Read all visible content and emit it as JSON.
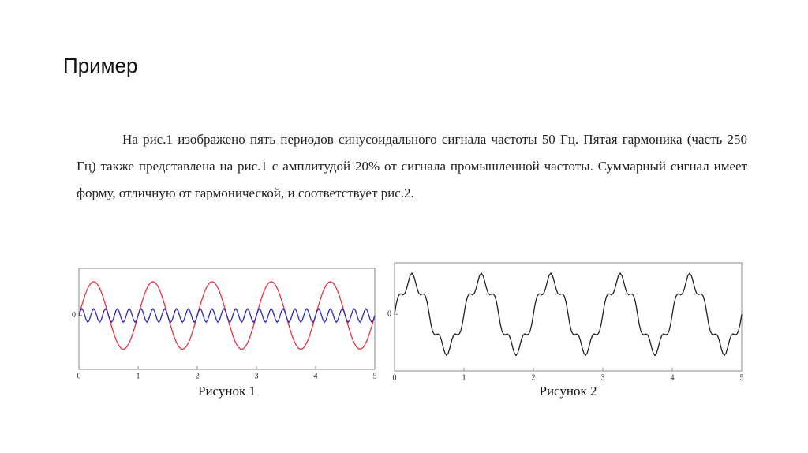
{
  "title": "Пример",
  "paragraph": "На рис.1 изображено пять периодов синусоидального сигнала частоты 50 Гц. Пятая гармоника  (часть 250 Гц) также представлена на рис.1 с амплитудой 20% от сигнала промышленной частоты. Суммарный сигнал имеет форму, отличную от гармонической, и соответствует рис.2.",
  "chart_data": [
    {
      "type": "line",
      "caption": "Рисунок 1",
      "xlim": [
        0,
        5
      ],
      "xticks": [
        0,
        1,
        2,
        3,
        4,
        5
      ],
      "ylim": [
        -1.6,
        1.4
      ],
      "yticks": [
        0
      ],
      "x": [
        0,
        0.025,
        0.05,
        0.075,
        0.1,
        0.125,
        0.15,
        0.175,
        0.2,
        0.225,
        0.25,
        0.275,
        0.3,
        0.325,
        0.35,
        0.375,
        0.4,
        0.425,
        0.45,
        0.475,
        0.5,
        0.525,
        0.55,
        0.575,
        0.6,
        0.625,
        0.65,
        0.675,
        0.7,
        0.725,
        0.75,
        0.775,
        0.8,
        0.825,
        0.85,
        0.875,
        0.9,
        0.925,
        0.95,
        0.975,
        1,
        1.025,
        1.05,
        1.075,
        1.1,
        1.125,
        1.15,
        1.175,
        1.2,
        1.225,
        1.25,
        1.275,
        1.3,
        1.325,
        1.35,
        1.375,
        1.4,
        1.425,
        1.45,
        1.475,
        1.5,
        1.525,
        1.55,
        1.575,
        1.6,
        1.625,
        1.65,
        1.675,
        1.7,
        1.725,
        1.75,
        1.775,
        1.8,
        1.825,
        1.85,
        1.875,
        1.9,
        1.925,
        1.95,
        1.975,
        2,
        2.025,
        2.05,
        2.075,
        2.1,
        2.125,
        2.15,
        2.175,
        2.2,
        2.225,
        2.25,
        2.275,
        2.3,
        2.325,
        2.35,
        2.375,
        2.4,
        2.425,
        2.45,
        2.475,
        2.5,
        2.525,
        2.55,
        2.575,
        2.6,
        2.625,
        2.65,
        2.675,
        2.7,
        2.725,
        2.75,
        2.775,
        2.8,
        2.825,
        2.85,
        2.875,
        2.9,
        2.925,
        2.95,
        2.975,
        3,
        3.025,
        3.05,
        3.075,
        3.1,
        3.125,
        3.15,
        3.175,
        3.2,
        3.225,
        3.25,
        3.275,
        3.3,
        3.325,
        3.35,
        3.375,
        3.4,
        3.425,
        3.45,
        3.475,
        3.5,
        3.525,
        3.55,
        3.575,
        3.6,
        3.625,
        3.65,
        3.675,
        3.7,
        3.725,
        3.75,
        3.775,
        3.8,
        3.825,
        3.85,
        3.875,
        3.9,
        3.925,
        3.95,
        3.975,
        4,
        4.025,
        4.05,
        4.075,
        4.1,
        4.125,
        4.15,
        4.175,
        4.2,
        4.225,
        4.25,
        4.275,
        4.3,
        4.325,
        4.35,
        4.375,
        4.4,
        4.425,
        4.45,
        4.475,
        4.5,
        4.525,
        4.55,
        4.575,
        4.6,
        4.625,
        4.65,
        4.675,
        4.7,
        4.725,
        4.75,
        4.775,
        4.8,
        4.825,
        4.85,
        4.875,
        4.9,
        4.925,
        4.95,
        4.975,
        5
      ],
      "series": [
        {
          "color": "#e8343c",
          "values": [
            0,
            0.16,
            0.31,
            0.45,
            0.59,
            0.71,
            0.81,
            0.89,
            0.95,
            0.99,
            1,
            0.99,
            0.95,
            0.89,
            0.81,
            0.71,
            0.59,
            0.45,
            0.31,
            0.16,
            0,
            -0.16,
            -0.31,
            -0.45,
            -0.59,
            -0.71,
            -0.81,
            -0.89,
            -0.95,
            -0.99,
            -1,
            -0.99,
            -0.95,
            -0.89,
            -0.81,
            -0.71,
            -0.59,
            -0.45,
            -0.31,
            -0.16,
            0,
            0.16,
            0.31,
            0.45,
            0.59,
            0.71,
            0.81,
            0.89,
            0.95,
            0.99,
            1,
            0.99,
            0.95,
            0.89,
            0.81,
            0.71,
            0.59,
            0.45,
            0.31,
            0.16,
            0,
            -0.16,
            -0.31,
            -0.45,
            -0.59,
            -0.71,
            -0.81,
            -0.89,
            -0.95,
            -0.99,
            -1,
            -0.99,
            -0.95,
            -0.89,
            -0.81,
            -0.71,
            -0.59,
            -0.45,
            -0.31,
            -0.16,
            0,
            0.16,
            0.31,
            0.45,
            0.59,
            0.71,
            0.81,
            0.89,
            0.95,
            0.99,
            1,
            0.99,
            0.95,
            0.89,
            0.81,
            0.71,
            0.59,
            0.45,
            0.31,
            0.16,
            0,
            -0.16,
            -0.31,
            -0.45,
            -0.59,
            -0.71,
            -0.81,
            -0.89,
            -0.95,
            -0.99,
            -1,
            -0.99,
            -0.95,
            -0.89,
            -0.81,
            -0.71,
            -0.59,
            -0.45,
            -0.31,
            -0.16,
            0,
            0.16,
            0.31,
            0.45,
            0.59,
            0.71,
            0.81,
            0.89,
            0.95,
            0.99,
            1,
            0.99,
            0.95,
            0.89,
            0.81,
            0.71,
            0.59,
            0.45,
            0.31,
            0.16,
            0,
            -0.16,
            -0.31,
            -0.45,
            -0.59,
            -0.71,
            -0.81,
            -0.89,
            -0.95,
            -0.99,
            -1,
            -0.99,
            -0.95,
            -0.89,
            -0.81,
            -0.71,
            -0.59,
            -0.45,
            -0.31,
            -0.16,
            0,
            0.16,
            0.31,
            0.45,
            0.59,
            0.71,
            0.81,
            0.89,
            0.95,
            0.99,
            1,
            0.99,
            0.95,
            0.89,
            0.81,
            0.71,
            0.59,
            0.45,
            0.31,
            0.16,
            0,
            -0.16,
            -0.31,
            -0.45,
            -0.59,
            -0.71,
            -0.81,
            -0.89,
            -0.95,
            -0.99,
            -1,
            -0.99,
            -0.95,
            -0.89,
            -0.81,
            -0.71,
            -0.59,
            -0.45,
            -0.31,
            -0.16,
            0
          ]
        },
        {
          "color": "#2b2bb8",
          "values": [
            0,
            0.14,
            0.2,
            0.14,
            0,
            -0.14,
            -0.2,
            -0.14,
            0,
            0.14,
            0.2,
            0.14,
            0,
            -0.14,
            -0.2,
            -0.14,
            0,
            0.14,
            0.2,
            0.14,
            0,
            -0.14,
            -0.2,
            -0.14,
            0,
            0.14,
            0.2,
            0.14,
            0,
            -0.14,
            -0.2,
            -0.14,
            0,
            0.14,
            0.2,
            0.14,
            0,
            -0.14,
            -0.2,
            -0.14,
            0,
            0.14,
            0.2,
            0.14,
            0,
            -0.14,
            -0.2,
            -0.14,
            0,
            0.14,
            0.2,
            0.14,
            0,
            -0.14,
            -0.2,
            -0.14,
            0,
            0.14,
            0.2,
            0.14,
            0,
            -0.14,
            -0.2,
            -0.14,
            0,
            0.14,
            0.2,
            0.14,
            0,
            -0.14,
            -0.2,
            -0.14,
            0,
            0.14,
            0.2,
            0.14,
            0,
            -0.14,
            -0.2,
            -0.14,
            0,
            0.14,
            0.2,
            0.14,
            0,
            -0.14,
            -0.2,
            -0.14,
            0,
            0.14,
            0.2,
            0.14,
            0,
            -0.14,
            -0.2,
            -0.14,
            0,
            0.14,
            0.2,
            0.14,
            0,
            -0.14,
            -0.2,
            -0.14,
            0,
            0.14,
            0.2,
            0.14,
            0,
            -0.14,
            -0.2,
            -0.14,
            0,
            0.14,
            0.2,
            0.14,
            0,
            -0.14,
            -0.2,
            -0.14,
            0,
            0.14,
            0.2,
            0.14,
            0,
            -0.14,
            -0.2,
            -0.14,
            0,
            0.14,
            0.2,
            0.14,
            0,
            -0.14,
            -0.2,
            -0.14,
            0,
            0.14,
            0.2,
            0.14,
            0,
            -0.14,
            -0.2,
            -0.14,
            0,
            0.14,
            0.2,
            0.14,
            0,
            -0.14,
            -0.2,
            -0.14,
            0,
            0.14,
            0.2,
            0.14,
            0,
            -0.14,
            -0.2,
            -0.14,
            0,
            0.14,
            0.2,
            0.14,
            0,
            -0.14,
            -0.2,
            -0.14,
            0,
            0.14,
            0.2,
            0.14,
            0,
            -0.14,
            -0.2,
            -0.14,
            0,
            0.14,
            0.2,
            0.14,
            0,
            -0.14,
            -0.2,
            -0.14,
            0,
            0.14,
            0.2,
            0.14,
            0,
            -0.14,
            -0.2,
            -0.14,
            0,
            0.14,
            0.2,
            0.14,
            0,
            -0.14,
            -0.2,
            -0.14,
            0
          ]
        }
      ]
    },
    {
      "type": "line",
      "caption": "Рисунок 2",
      "xlim": [
        0,
        5
      ],
      "xticks": [
        0,
        1,
        2,
        3,
        4,
        5
      ],
      "ylim": [
        -1.65,
        1.5
      ],
      "yticks": [
        0
      ],
      "x": [
        0,
        0.025,
        0.05,
        0.075,
        0.1,
        0.125,
        0.15,
        0.175,
        0.2,
        0.225,
        0.25,
        0.275,
        0.3,
        0.325,
        0.35,
        0.375,
        0.4,
        0.425,
        0.45,
        0.475,
        0.5,
        0.525,
        0.55,
        0.575,
        0.6,
        0.625,
        0.65,
        0.675,
        0.7,
        0.725,
        0.75,
        0.775,
        0.8,
        0.825,
        0.85,
        0.875,
        0.9,
        0.925,
        0.95,
        0.975,
        1,
        1.025,
        1.05,
        1.075,
        1.1,
        1.125,
        1.15,
        1.175,
        1.2,
        1.225,
        1.25,
        1.275,
        1.3,
        1.325,
        1.35,
        1.375,
        1.4,
        1.425,
        1.45,
        1.475,
        1.5,
        1.525,
        1.55,
        1.575,
        1.6,
        1.625,
        1.65,
        1.675,
        1.7,
        1.725,
        1.75,
        1.775,
        1.8,
        1.825,
        1.85,
        1.875,
        1.9,
        1.925,
        1.95,
        1.975,
        2,
        2.025,
        2.05,
        2.075,
        2.1,
        2.125,
        2.15,
        2.175,
        2.2,
        2.225,
        2.25,
        2.275,
        2.3,
        2.325,
        2.35,
        2.375,
        2.4,
        2.425,
        2.45,
        2.475,
        2.5,
        2.525,
        2.55,
        2.575,
        2.6,
        2.625,
        2.65,
        2.675,
        2.7,
        2.725,
        2.75,
        2.775,
        2.8,
        2.825,
        2.85,
        2.875,
        2.9,
        2.925,
        2.95,
        2.975,
        3,
        3.025,
        3.05,
        3.075,
        3.1,
        3.125,
        3.15,
        3.175,
        3.2,
        3.225,
        3.25,
        3.275,
        3.3,
        3.325,
        3.35,
        3.375,
        3.4,
        3.425,
        3.45,
        3.475,
        3.5,
        3.525,
        3.55,
        3.575,
        3.6,
        3.625,
        3.65,
        3.675,
        3.7,
        3.725,
        3.75,
        3.775,
        3.8,
        3.825,
        3.85,
        3.875,
        3.9,
        3.925,
        3.95,
        3.975,
        4,
        4.025,
        4.05,
        4.075,
        4.1,
        4.125,
        4.15,
        4.175,
        4.2,
        4.225,
        4.25,
        4.275,
        4.3,
        4.325,
        4.35,
        4.375,
        4.4,
        4.425,
        4.45,
        4.475,
        4.5,
        4.525,
        4.55,
        4.575,
        4.6,
        4.625,
        4.65,
        4.675,
        4.7,
        4.725,
        4.75,
        4.775,
        4.8,
        4.825,
        4.85,
        4.875,
        4.9,
        4.925,
        4.95,
        4.975,
        5
      ],
      "series": [
        {
          "color": "#222222",
          "values": [
            0,
            0.3,
            0.51,
            0.59,
            0.59,
            0.57,
            0.61,
            0.75,
            0.95,
            1.13,
            1.2,
            1.13,
            0.95,
            0.75,
            0.61,
            0.57,
            0.59,
            0.59,
            0.51,
            0.3,
            0,
            -0.3,
            -0.51,
            -0.59,
            -0.59,
            -0.57,
            -0.61,
            -0.75,
            -0.95,
            -1.13,
            -1.2,
            -1.13,
            -0.95,
            -0.75,
            -0.61,
            -0.57,
            -0.59,
            -0.59,
            -0.51,
            -0.3,
            0,
            0.3,
            0.51,
            0.59,
            0.59,
            0.57,
            0.61,
            0.75,
            0.95,
            1.13,
            1.2,
            1.13,
            0.95,
            0.75,
            0.61,
            0.57,
            0.59,
            0.59,
            0.51,
            0.3,
            0,
            -0.3,
            -0.51,
            -0.59,
            -0.59,
            -0.57,
            -0.61,
            -0.75,
            -0.95,
            -1.13,
            -1.2,
            -1.13,
            -0.95,
            -0.75,
            -0.61,
            -0.57,
            -0.59,
            -0.59,
            -0.51,
            -0.3,
            0,
            0.3,
            0.51,
            0.59,
            0.59,
            0.57,
            0.61,
            0.75,
            0.95,
            1.13,
            1.2,
            1.13,
            0.95,
            0.75,
            0.61,
            0.57,
            0.59,
            0.59,
            0.51,
            0.3,
            0,
            -0.3,
            -0.51,
            -0.59,
            -0.59,
            -0.57,
            -0.61,
            -0.75,
            -0.95,
            -1.13,
            -1.2,
            -1.13,
            -0.95,
            -0.75,
            -0.61,
            -0.57,
            -0.59,
            -0.59,
            -0.51,
            -0.3,
            0,
            0.3,
            0.51,
            0.59,
            0.59,
            0.57,
            0.61,
            0.75,
            0.95,
            1.13,
            1.2,
            1.13,
            0.95,
            0.75,
            0.61,
            0.57,
            0.59,
            0.59,
            0.51,
            0.3,
            0,
            -0.3,
            -0.51,
            -0.59,
            -0.59,
            -0.57,
            -0.61,
            -0.75,
            -0.95,
            -1.13,
            -1.2,
            -1.13,
            -0.95,
            -0.75,
            -0.61,
            -0.57,
            -0.59,
            -0.59,
            -0.51,
            -0.3,
            0,
            0.3,
            0.51,
            0.59,
            0.59,
            0.57,
            0.61,
            0.75,
            0.95,
            1.13,
            1.2,
            1.13,
            0.95,
            0.75,
            0.61,
            0.57,
            0.59,
            0.59,
            0.51,
            0.3,
            0,
            -0.3,
            -0.51,
            -0.59,
            -0.59,
            -0.57,
            -0.61,
            -0.75,
            -0.95,
            -1.13,
            -1.2,
            -1.13,
            -0.95,
            -0.75,
            -0.61,
            -0.57,
            -0.59,
            -0.59,
            -0.51,
            -0.3,
            0
          ]
        }
      ]
    }
  ]
}
